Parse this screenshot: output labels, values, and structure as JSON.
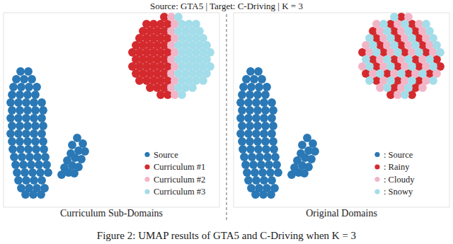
{
  "title": "Source: GTA5 | Target: C-Driving | K = 3",
  "caption": "Figure 2: UMAP results of GTA5 and C-Driving when K = 3",
  "chart_data": [
    {
      "type": "scatter",
      "title": "Curriculum Sub-Domains",
      "xlim": [
        0,
        305
      ],
      "ylim": [
        0,
        275
      ],
      "tick_labels": false,
      "legend": "lower right",
      "marker": "circle",
      "series": [
        {
          "name": "Source",
          "color": "#2a78b5",
          "x": [
            24,
            35,
            18,
            29,
            40,
            14,
            25,
            36,
            47,
            12,
            23,
            34,
            45,
            10,
            21,
            32,
            43,
            54,
            12,
            23,
            34,
            45,
            56,
            10,
            21,
            32,
            43,
            54,
            12,
            23,
            34,
            45,
            56,
            10,
            21,
            32,
            43,
            54,
            12,
            23,
            34,
            45,
            56,
            13,
            24,
            35,
            46,
            57,
            15,
            26,
            37,
            48,
            59,
            17,
            28,
            39,
            50,
            61,
            19,
            30,
            41,
            52,
            63,
            21,
            32,
            43,
            54,
            25,
            36,
            47,
            58,
            31,
            42,
            53,
            104,
            112,
            97,
            106,
            115,
            95,
            101,
            110,
            90,
            97,
            106,
            86,
            92,
            82,
            100
          ],
          "y": [
            192,
            192,
            181,
            181,
            181,
            170,
            170,
            170,
            170,
            159,
            159,
            159,
            159,
            148,
            148,
            148,
            148,
            148,
            137,
            137,
            137,
            137,
            137,
            126,
            126,
            126,
            126,
            126,
            115,
            115,
            115,
            115,
            115,
            104,
            104,
            104,
            104,
            104,
            93,
            93,
            93,
            93,
            93,
            82,
            82,
            82,
            82,
            82,
            71,
            71,
            71,
            71,
            71,
            60,
            60,
            60,
            60,
            60,
            49,
            49,
            49,
            49,
            49,
            38,
            38,
            38,
            38,
            27,
            27,
            27,
            27,
            18,
            18,
            18,
            98,
            90,
            88,
            80,
            79,
            76,
            70,
            68,
            66,
            59,
            57,
            56,
            49,
            46,
            48
          ]
        },
        {
          "name": "Curriculum #1",
          "color": "#d42a2e",
          "x": [
            222,
            232,
            207,
            217,
            227,
            192,
            202,
            212,
            222,
            232,
            187,
            197,
            207,
            217,
            227,
            182,
            192,
            202,
            212,
            222,
            232,
            187,
            197,
            207,
            217,
            227,
            182,
            192,
            202,
            212,
            222,
            232,
            187,
            197,
            207,
            217,
            227,
            192,
            202,
            212,
            222,
            232,
            197,
            207,
            217,
            227,
            202,
            212,
            222,
            232,
            227
          ],
          "y": [
            159,
            159,
            169,
            169,
            169,
            179,
            179,
            179,
            179,
            179,
            189,
            189,
            189,
            189,
            189,
            199,
            199,
            199,
            199,
            199,
            199,
            209,
            209,
            209,
            209,
            209,
            219,
            219,
            219,
            219,
            219,
            219,
            229,
            229,
            229,
            229,
            229,
            239,
            239,
            239,
            239,
            239,
            249,
            249,
            249,
            249,
            259,
            259,
            259,
            259,
            269
          ]
        },
        {
          "name": "Curriculum #2",
          "color": "#f2b5c8",
          "x": [
            242,
            237,
            242,
            237,
            242,
            237,
            242,
            237,
            242,
            237,
            242,
            237
          ],
          "y": [
            159,
            169,
            179,
            189,
            199,
            209,
            219,
            229,
            239,
            249,
            259,
            269
          ]
        },
        {
          "name": "Curriculum #3",
          "color": "#a3dde9",
          "x": [
            252,
            247,
            257,
            267,
            252,
            262,
            272,
            282,
            247,
            257,
            267,
            277,
            287,
            252,
            262,
            272,
            282,
            292,
            247,
            257,
            267,
            277,
            287,
            252,
            262,
            272,
            282,
            292,
            247,
            257,
            267,
            277,
            287,
            252,
            262,
            272,
            282,
            247,
            257,
            267,
            277,
            252,
            262,
            272,
            247
          ],
          "y": [
            159,
            169,
            169,
            169,
            179,
            179,
            179,
            179,
            189,
            189,
            189,
            189,
            189,
            199,
            199,
            199,
            199,
            199,
            209,
            209,
            209,
            209,
            209,
            219,
            219,
            219,
            219,
            219,
            229,
            229,
            229,
            229,
            229,
            239,
            239,
            239,
            239,
            249,
            249,
            249,
            249,
            259,
            259,
            259,
            269
          ]
        }
      ]
    },
    {
      "type": "scatter",
      "title": "Original Domains",
      "xlim": [
        0,
        305
      ],
      "ylim": [
        0,
        275
      ],
      "tick_labels": false,
      "legend": "lower right",
      "marker": "circle",
      "series": [
        {
          "name": ": Source",
          "color": "#2a78b5",
          "x": [
            24,
            35,
            18,
            29,
            40,
            14,
            25,
            36,
            47,
            12,
            23,
            34,
            45,
            10,
            21,
            32,
            43,
            54,
            12,
            23,
            34,
            45,
            56,
            10,
            21,
            32,
            43,
            54,
            12,
            23,
            34,
            45,
            56,
            10,
            21,
            32,
            43,
            54,
            12,
            23,
            34,
            45,
            56,
            13,
            24,
            35,
            46,
            57,
            15,
            26,
            37,
            48,
            59,
            17,
            28,
            39,
            50,
            61,
            19,
            30,
            41,
            52,
            63,
            21,
            32,
            43,
            54,
            25,
            36,
            47,
            58,
            31,
            42,
            53,
            104,
            112,
            97,
            106,
            115,
            95,
            101,
            110,
            90,
            97,
            106,
            86,
            92,
            82,
            100
          ],
          "y": [
            192,
            192,
            181,
            181,
            181,
            170,
            170,
            170,
            170,
            159,
            159,
            159,
            159,
            148,
            148,
            148,
            148,
            148,
            137,
            137,
            137,
            137,
            137,
            126,
            126,
            126,
            126,
            126,
            115,
            115,
            115,
            115,
            115,
            104,
            104,
            104,
            104,
            104,
            93,
            93,
            93,
            93,
            93,
            82,
            82,
            82,
            82,
            82,
            71,
            71,
            71,
            71,
            71,
            60,
            60,
            60,
            60,
            60,
            49,
            49,
            49,
            49,
            49,
            38,
            38,
            38,
            38,
            27,
            27,
            27,
            27,
            18,
            18,
            18,
            98,
            90,
            88,
            80,
            79,
            76,
            70,
            68,
            66,
            59,
            57,
            56,
            49,
            46,
            48
          ]
        },
        {
          "name": ": Rainy",
          "color": "#d42a2e",
          "x": [
            222,
            252,
            227,
            257,
            202,
            232,
            262,
            187,
            217,
            247,
            277,
            202,
            232,
            262,
            292,
            197,
            227,
            257,
            287,
            182,
            212,
            242,
            272,
            207,
            237,
            267,
            202,
            232,
            262,
            197,
            227,
            257,
            222,
            252,
            237
          ],
          "y": [
            159,
            159,
            169,
            169,
            179,
            179,
            179,
            189,
            189,
            189,
            189,
            199,
            199,
            199,
            199,
            209,
            209,
            209,
            209,
            219,
            219,
            219,
            219,
            229,
            229,
            229,
            239,
            239,
            239,
            249,
            249,
            249,
            259,
            259,
            269
          ]
        },
        {
          "name": ": Cloudy",
          "color": "#f2b5c8",
          "x": [
            232,
            207,
            237,
            267,
            212,
            242,
            272,
            197,
            227,
            257,
            287,
            182,
            212,
            242,
            272,
            207,
            237,
            267,
            192,
            222,
            252,
            282,
            187,
            217,
            247,
            277,
            212,
            242,
            272,
            207,
            237,
            267,
            202,
            232,
            262,
            247
          ],
          "y": [
            159,
            169,
            169,
            169,
            179,
            179,
            179,
            189,
            189,
            189,
            189,
            199,
            199,
            199,
            199,
            209,
            209,
            209,
            219,
            219,
            219,
            219,
            229,
            229,
            229,
            229,
            239,
            239,
            239,
            249,
            249,
            249,
            259,
            259,
            259,
            269
          ]
        },
        {
          "name": ": Snowy",
          "color": "#a3dde9",
          "x": [
            242,
            217,
            247,
            192,
            222,
            252,
            282,
            207,
            237,
            267,
            192,
            222,
            252,
            282,
            187,
            217,
            247,
            277,
            202,
            232,
            262,
            292,
            197,
            227,
            257,
            287,
            192,
            222,
            252,
            282,
            217,
            247,
            277,
            212,
            242,
            272,
            227
          ],
          "y": [
            159,
            169,
            169,
            179,
            179,
            179,
            179,
            189,
            189,
            189,
            199,
            199,
            199,
            199,
            209,
            209,
            209,
            209,
            219,
            219,
            219,
            219,
            229,
            229,
            229,
            229,
            239,
            239,
            239,
            239,
            249,
            249,
            249,
            259,
            259,
            259,
            269
          ]
        }
      ]
    }
  ]
}
